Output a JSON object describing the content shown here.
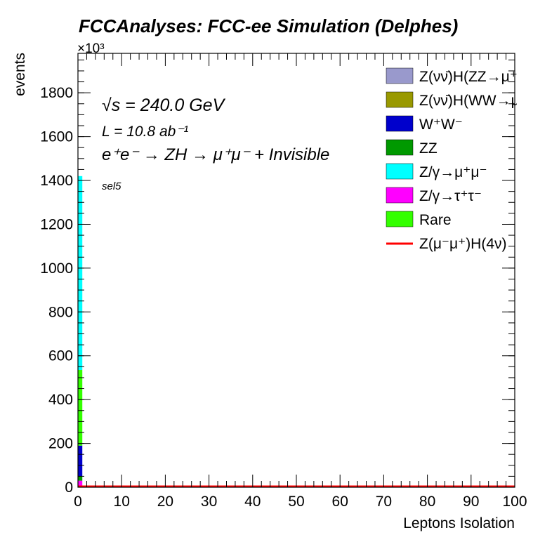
{
  "chart_data": {
    "type": "bar",
    "stacked": true,
    "title": "FCCAnalyses: FCC-ee Simulation (Delphes)",
    "xlabel": "Leptons Isolation",
    "ylabel": "events",
    "y_multiplier": "×10³",
    "xlim": [
      0,
      100
    ],
    "ylim": [
      0,
      1980
    ],
    "x_ticks": [
      "0",
      "10",
      "20",
      "30",
      "40",
      "50",
      "60",
      "70",
      "80",
      "90",
      "100"
    ],
    "y_ticks": [
      "0",
      "200",
      "400",
      "600",
      "800",
      "1000",
      "1200",
      "1400",
      "1600",
      "1800"
    ],
    "annotations": {
      "sqrt_s": "√s = 240.0 GeV",
      "lumi": "L = 10.8 ab⁻¹",
      "process": "e⁺e⁻ → ZH → μ⁺μ⁻ + Invisible",
      "selection": "sel5"
    },
    "legend_position": "top-right",
    "bin": [
      0,
      1
    ],
    "series": [
      {
        "name": "Z(νν̄)H(ZZ→μ⁺μ⁻ν⁺ν⁻)",
        "color": "#9999cc",
        "value": 0
      },
      {
        "name": "Z(νν̄)H(WW→μ⁺νμ⁻ν)",
        "color": "#999900",
        "value": 0
      },
      {
        "name": "W⁺W⁻",
        "color": "#0000cc",
        "value": 140
      },
      {
        "name": "ZZ",
        "color": "#009900",
        "value": 20
      },
      {
        "name": "Z/γ→μ⁺μ⁻",
        "color": "#00ffff",
        "value": 885
      },
      {
        "name": "Z/γ→τ⁺τ⁻",
        "color": "#ff00ff",
        "value": 30
      },
      {
        "name": "Rare",
        "color": "#33ff00",
        "value": 345
      }
    ],
    "signal": {
      "name": "Z(μ⁻μ⁺)H(4ν)",
      "color": "#ff0000",
      "value": 0
    },
    "stack_order": [
      "Z/γ→τ⁺τ⁻",
      "ZZ",
      "W⁺W⁻",
      "Rare",
      "Z/γ→μ⁺μ⁻"
    ]
  }
}
